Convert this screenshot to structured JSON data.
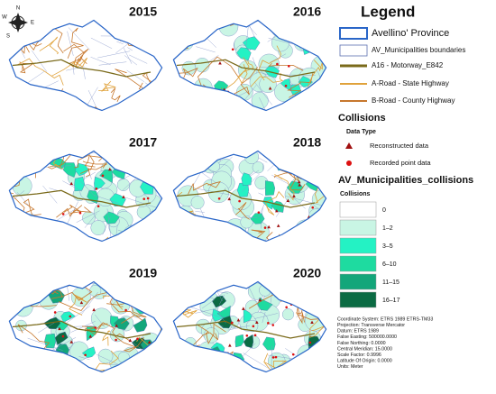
{
  "compass": {
    "north": "N",
    "east": "E",
    "south": "S",
    "west": "W"
  },
  "panels": [
    {
      "year": "2015"
    },
    {
      "year": "2016"
    },
    {
      "year": "2017"
    },
    {
      "year": "2018"
    },
    {
      "year": "2019"
    },
    {
      "year": "2020"
    }
  ],
  "legend": {
    "title": "Legend",
    "items": [
      "Avellino' Province",
      "AV_Municipalities boundaries",
      "A16 - Motorway_E842",
      "A-Road - State Highway",
      "B-Road - County Highway"
    ],
    "collisions": {
      "title": "Collisions",
      "subtitle": "Data Type",
      "items": [
        "Reconstructed data",
        "Recorded point data"
      ]
    },
    "municipalities": {
      "title": "AV_Municipalities_collisions",
      "subtitle": "Collisions",
      "classes": [
        "0",
        "1–2",
        "3–5",
        "6–10",
        "11–15",
        "16–17"
      ]
    }
  },
  "coordinate_info": [
    "Coordinate System: ETRS 1989 ETRS-TM33",
    "Projection: Transverse Mercator",
    "Datum: ETRS 1989",
    "False Easting: 500000.0000",
    "False Northing: 0.0000",
    "Central Meridian: 15.0000",
    "Scale Factor: 0.9996",
    "Latitude Of Origin: 0.0000",
    "Units: Meter"
  ]
}
